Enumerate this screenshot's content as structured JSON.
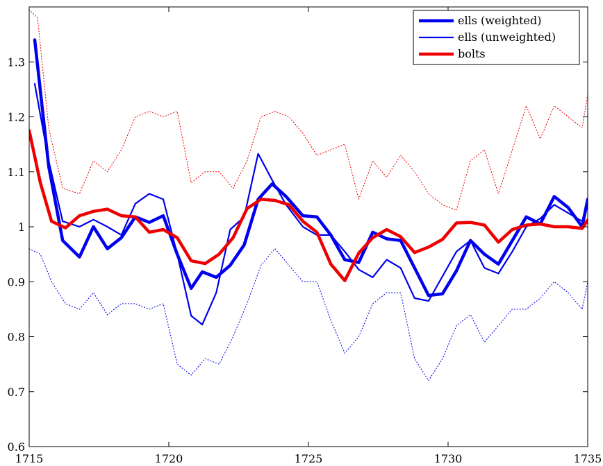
{
  "chart_data": {
    "type": "line",
    "title": "",
    "xlabel": "",
    "ylabel": "",
    "xlim": [
      1715,
      1735
    ],
    "ylim": [
      0.6,
      1.4
    ],
    "xticks": [
      1715,
      1720,
      1725,
      1730,
      1735
    ],
    "xtick_labels": [
      "1715",
      "1720",
      "1725",
      "1730",
      "1735"
    ],
    "yticks": [
      0.6,
      0.7,
      0.8,
      0.9,
      1.0,
      1.1,
      1.2,
      1.3
    ],
    "ytick_labels": [
      "0.6",
      "0.7",
      "0.8",
      "0.9",
      "1",
      "1.1",
      "1.2",
      "1.3"
    ],
    "grid": false,
    "legend_position": "top-right",
    "series": [
      {
        "name": "ells (weighted)",
        "color": "#0000ee",
        "style": "thick",
        "x": [
          1715.2,
          1715.7,
          1716.2,
          1716.8,
          1717.3,
          1717.8,
          1718.3,
          1718.8,
          1719.3,
          1719.8,
          1720.3,
          1720.8,
          1721.2,
          1721.7,
          1722.2,
          1722.7,
          1723.2,
          1723.7,
          1724.2,
          1724.8,
          1725.3,
          1725.8,
          1726.3,
          1726.8,
          1727.3,
          1727.8,
          1728.3,
          1728.8,
          1729.3,
          1729.8,
          1730.3,
          1730.8,
          1731.3,
          1731.8,
          1732.3,
          1732.8,
          1733.3,
          1733.8,
          1734.3,
          1734.8,
          1735.0
        ],
        "y": [
          1.34,
          1.11,
          0.975,
          0.945,
          1.0,
          0.96,
          0.98,
          1.018,
          1.008,
          1.02,
          0.95,
          0.888,
          0.918,
          0.908,
          0.93,
          0.967,
          1.05,
          1.078,
          1.055,
          1.02,
          1.018,
          0.985,
          0.94,
          0.935,
          0.99,
          0.978,
          0.975,
          0.925,
          0.875,
          0.878,
          0.92,
          0.975,
          0.95,
          0.932,
          0.975,
          1.018,
          1.005,
          1.055,
          1.035,
          1.0,
          1.05
        ]
      },
      {
        "name": "ells (unweighted)",
        "color": "#0000ee",
        "style": "thin",
        "x": [
          1715.2,
          1715.7,
          1716.2,
          1716.8,
          1717.3,
          1717.8,
          1718.3,
          1718.8,
          1719.3,
          1719.8,
          1720.3,
          1720.8,
          1721.2,
          1721.7,
          1722.2,
          1722.7,
          1723.2,
          1723.7,
          1724.2,
          1724.8,
          1725.3,
          1725.8,
          1726.3,
          1726.8,
          1727.3,
          1727.8,
          1728.3,
          1728.8,
          1729.3,
          1729.8,
          1730.3,
          1730.8,
          1731.3,
          1731.8,
          1732.3,
          1732.8,
          1733.3,
          1733.8,
          1734.3,
          1734.8,
          1735.0
        ],
        "y": [
          1.26,
          1.12,
          1.01,
          1.0,
          1.013,
          1.0,
          0.985,
          1.042,
          1.06,
          1.05,
          0.95,
          0.838,
          0.822,
          0.88,
          0.995,
          1.018,
          1.133,
          1.085,
          1.04,
          1.0,
          0.985,
          0.985,
          0.955,
          0.922,
          0.908,
          0.94,
          0.925,
          0.87,
          0.865,
          0.91,
          0.955,
          0.975,
          0.925,
          0.915,
          0.955,
          1.0,
          1.015,
          1.04,
          1.025,
          1.01,
          1.05
        ]
      },
      {
        "name": "bolts",
        "color": "#ee0000",
        "style": "thick",
        "x": [
          1715.0,
          1715.4,
          1715.8,
          1716.3,
          1716.8,
          1717.3,
          1717.8,
          1718.3,
          1718.8,
          1719.3,
          1719.8,
          1720.3,
          1720.8,
          1721.3,
          1721.8,
          1722.3,
          1722.8,
          1723.3,
          1723.8,
          1724.3,
          1724.8,
          1725.3,
          1725.8,
          1726.3,
          1726.8,
          1727.3,
          1727.8,
          1728.3,
          1728.8,
          1729.3,
          1729.8,
          1730.3,
          1730.8,
          1731.3,
          1731.8,
          1732.3,
          1732.8,
          1733.3,
          1733.8,
          1734.3,
          1734.8,
          1735.0
        ],
        "y": [
          1.175,
          1.08,
          1.01,
          0.998,
          1.02,
          1.028,
          1.032,
          1.02,
          1.018,
          0.99,
          0.995,
          0.98,
          0.938,
          0.933,
          0.95,
          0.98,
          1.033,
          1.05,
          1.048,
          1.04,
          1.01,
          0.99,
          0.932,
          0.902,
          0.952,
          0.98,
          0.995,
          0.982,
          0.953,
          0.963,
          0.977,
          1.007,
          1.008,
          1.003,
          0.972,
          0.995,
          1.003,
          1.005,
          1.0,
          1.0,
          0.997,
          1.012
        ]
      },
      {
        "name": "",
        "color": "#ee0000",
        "style": "dotted",
        "x": [
          1715.0,
          1715.3,
          1715.7,
          1716.2,
          1716.8,
          1717.3,
          1717.8,
          1718.3,
          1718.8,
          1719.3,
          1719.8,
          1720.3,
          1720.8,
          1721.3,
          1721.8,
          1722.3,
          1722.8,
          1723.3,
          1723.8,
          1724.3,
          1724.8,
          1725.3,
          1725.8,
          1726.3,
          1726.8,
          1727.3,
          1727.8,
          1728.3,
          1728.8,
          1729.3,
          1729.8,
          1730.3,
          1730.8,
          1731.3,
          1731.8,
          1732.3,
          1732.8,
          1733.3,
          1733.8,
          1734.3,
          1734.8,
          1735.0
        ],
        "y": [
          1.395,
          1.38,
          1.18,
          1.07,
          1.06,
          1.12,
          1.1,
          1.14,
          1.2,
          1.21,
          1.2,
          1.21,
          1.08,
          1.1,
          1.1,
          1.07,
          1.12,
          1.2,
          1.21,
          1.2,
          1.17,
          1.13,
          1.14,
          1.15,
          1.05,
          1.12,
          1.09,
          1.13,
          1.1,
          1.06,
          1.04,
          1.03,
          1.12,
          1.14,
          1.06,
          1.14,
          1.22,
          1.16,
          1.22,
          1.2,
          1.18,
          1.24
        ]
      },
      {
        "name": "",
        "color": "#0000ee",
        "style": "dotted",
        "x": [
          1715.0,
          1715.4,
          1715.8,
          1716.3,
          1716.8,
          1717.3,
          1717.8,
          1718.3,
          1718.8,
          1719.3,
          1719.8,
          1720.3,
          1720.8,
          1721.3,
          1721.8,
          1722.3,
          1722.8,
          1723.3,
          1723.8,
          1724.3,
          1724.8,
          1725.3,
          1725.8,
          1726.3,
          1726.8,
          1727.3,
          1727.8,
          1728.3,
          1728.8,
          1729.3,
          1729.8,
          1730.3,
          1730.8,
          1731.3,
          1731.8,
          1732.3,
          1732.8,
          1733.3,
          1733.8,
          1734.3,
          1734.8,
          1735.0
        ],
        "y": [
          0.96,
          0.95,
          0.9,
          0.86,
          0.85,
          0.88,
          0.84,
          0.86,
          0.86,
          0.85,
          0.86,
          0.75,
          0.73,
          0.76,
          0.75,
          0.8,
          0.86,
          0.93,
          0.96,
          0.93,
          0.9,
          0.9,
          0.83,
          0.77,
          0.8,
          0.86,
          0.88,
          0.88,
          0.76,
          0.72,
          0.76,
          0.82,
          0.84,
          0.79,
          0.82,
          0.85,
          0.85,
          0.87,
          0.9,
          0.88,
          0.85,
          0.9
        ]
      }
    ]
  }
}
